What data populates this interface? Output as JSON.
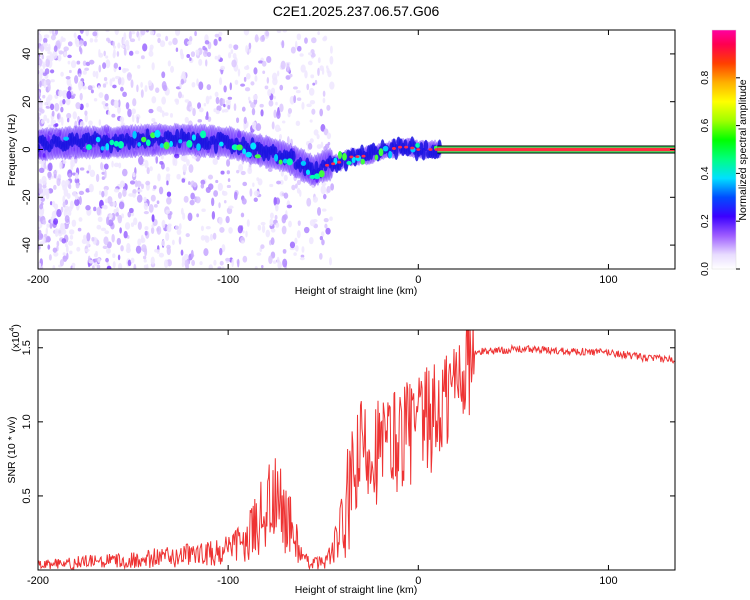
{
  "title": "C2E1.2025.237.06.57.G06",
  "chart_data": [
    {
      "type": "heatmap",
      "xlabel": "Height of straight line (km)",
      "ylabel": "Frequency (Hz)",
      "xlim": [
        -200,
        135
      ],
      "ylim": [
        -50,
        50
      ],
      "xticks": [
        -200,
        -100,
        0,
        100
      ],
      "yticks": [
        -40,
        -20,
        0,
        20,
        40
      ],
      "ridge": {
        "x": [
          -200,
          -180,
          -160,
          -140,
          -120,
          -100,
          -90,
          -80,
          -70,
          -60,
          -55,
          -50,
          -45,
          -40,
          -35,
          -30,
          -25,
          -20,
          -15,
          -10,
          -5,
          0,
          5,
          10,
          135
        ],
        "frequency": [
          2,
          3,
          3,
          4,
          4,
          3,
          1,
          -1,
          -3,
          -7,
          -9,
          -7,
          -6,
          -5,
          -3,
          -3,
          -2,
          -1,
          0,
          1,
          1,
          0,
          0,
          0,
          0
        ]
      },
      "colorbar": {
        "label": "Normalized spectral amplitude",
        "ticks": [
          "0.0",
          "0.2",
          "0.4",
          "0.6",
          "0.8"
        ],
        "range": [
          0,
          1
        ]
      }
    },
    {
      "type": "line",
      "xlabel": "Height of straight line (km)",
      "ylabel": "SNR (10 * v/v)",
      "yscale_label": "(x10",
      "yscale_exp": "4",
      "yscale_close": ")",
      "xlim": [
        -200,
        135
      ],
      "ylim": [
        0,
        1.62
      ],
      "xticks": [
        -200,
        -100,
        0,
        100
      ],
      "yticks": [
        "0.5",
        "1.0",
        "1.5"
      ],
      "line_color": "#ee3333",
      "series": [
        {
          "name": "SNR",
          "x": [
            -200,
            -180,
            -160,
            -140,
            -120,
            -110,
            -100,
            -90,
            -85,
            -80,
            -75,
            -70,
            -65,
            -60,
            -55,
            -50,
            -45,
            -40,
            -35,
            -30,
            -25,
            -20,
            -15,
            -10,
            -5,
            0,
            5,
            10,
            15,
            20,
            25,
            30,
            35,
            40,
            50,
            60,
            70,
            80,
            90,
            100,
            110,
            120,
            135
          ],
          "values": [
            0.03,
            0.05,
            0.06,
            0.08,
            0.1,
            0.11,
            0.13,
            0.2,
            0.3,
            0.45,
            0.45,
            0.38,
            0.22,
            0.06,
            0.05,
            0.05,
            0.12,
            0.3,
            0.55,
            0.8,
            0.85,
            0.8,
            0.85,
            0.9,
            0.95,
            0.95,
            1.0,
            1.05,
            1.15,
            1.3,
            1.4,
            1.46,
            1.48,
            1.48,
            1.49,
            1.49,
            1.48,
            1.48,
            1.47,
            1.47,
            1.45,
            1.43,
            1.42
          ]
        }
      ]
    }
  ]
}
